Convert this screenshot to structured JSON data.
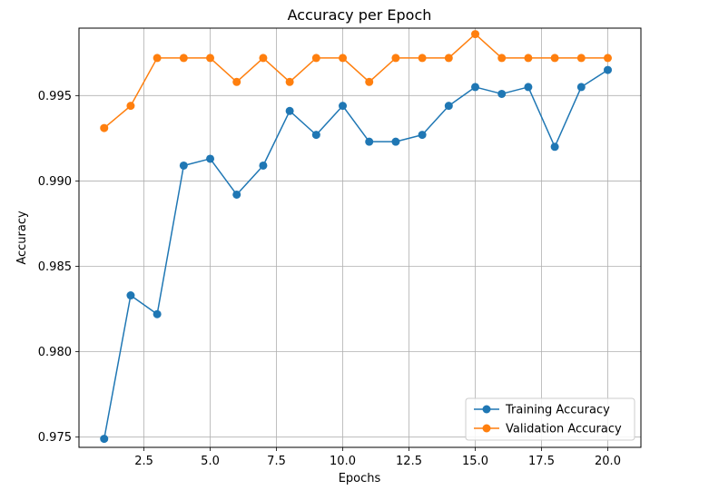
{
  "chart_data": {
    "type": "line",
    "title": "Accuracy per Epoch",
    "xlabel": "Epochs",
    "ylabel": "Accuracy",
    "xlim": [
      0.05,
      21.25
    ],
    "ylim": [
      0.9744,
      0.99895
    ],
    "xticks": [
      2.5,
      5.0,
      7.5,
      10.0,
      12.5,
      15.0,
      17.5,
      20.0
    ],
    "xtick_labels": [
      "2.5",
      "5.0",
      "7.5",
      "10.0",
      "12.5",
      "15.0",
      "17.5",
      "20.0"
    ],
    "yticks": [
      0.975,
      0.98,
      0.985,
      0.99,
      0.995
    ],
    "ytick_labels": [
      "0.975",
      "0.980",
      "0.985",
      "0.990",
      "0.995"
    ],
    "grid": true,
    "legend_position": "bottom-right",
    "x": [
      1,
      2,
      3,
      4,
      5,
      6,
      7,
      8,
      9,
      10,
      11,
      12,
      13,
      14,
      15,
      16,
      17,
      18,
      19,
      20
    ],
    "series": [
      {
        "name": "Training Accuracy",
        "color": "#1f77b4",
        "values": [
          0.9749,
          0.9833,
          0.9822,
          0.9909,
          0.9913,
          0.9892,
          0.9909,
          0.9941,
          0.9927,
          0.9944,
          0.9923,
          0.9923,
          0.9927,
          0.9944,
          0.9955,
          0.9951,
          0.9955,
          0.992,
          0.9955,
          0.9965
        ]
      },
      {
        "name": "Validation Accuracy",
        "color": "#ff7f0e",
        "values": [
          0.9931,
          0.9944,
          0.9972,
          0.9972,
          0.9972,
          0.9958,
          0.9972,
          0.9958,
          0.9972,
          0.9972,
          0.9958,
          0.9972,
          0.9972,
          0.9972,
          0.9986,
          0.9972,
          0.9972,
          0.9972,
          0.9972,
          0.9972
        ]
      }
    ]
  }
}
